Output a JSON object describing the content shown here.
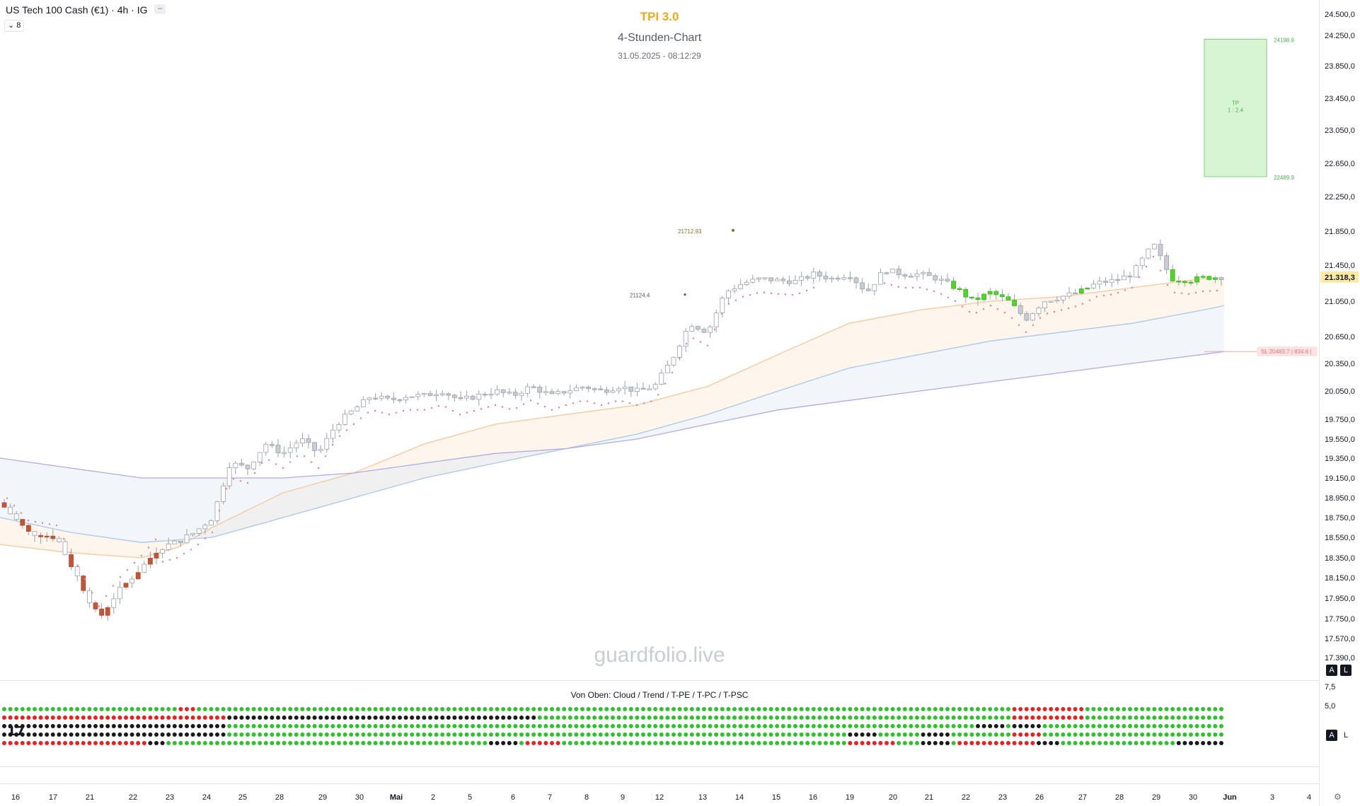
{
  "header": {
    "symbol_title": "US Tech 100 Cash (€1) · 4h · IG",
    "minimize_glyph": "–",
    "collapse_label": "8",
    "indicator_title": "TPI 3.0",
    "chart_subtitle": "4-Stunden-Chart",
    "datetime": "31.05.2025 - 08:12:29"
  },
  "watermark": "guardfolio.live",
  "price_axis": {
    "labels": [
      "24.500,0",
      "24.250,0",
      "23.850,0",
      "23.450,0",
      "23.050,0",
      "22.650,0",
      "22.250,0",
      "21.850,0",
      "21.450,0",
      "21.050,0",
      "20.650,0",
      "20.350,0",
      "20.050,0",
      "19.750,0",
      "19.550,0",
      "19.350,0",
      "19.150,0",
      "18.950,0",
      "18.750,0",
      "18.550,0",
      "18.350,0",
      "18.150,0",
      "17.950,0",
      "17.750,0",
      "17.570,0",
      "17.390,0"
    ],
    "current_price_label": "21.318,3",
    "buttons": [
      "A",
      "L"
    ]
  },
  "indicator_pane": {
    "label": "Von Oben: Cloud / Trend / T-PE / T-PC / T-PSC",
    "axis_labels": [
      "7,5",
      "5,0"
    ],
    "buttons": [
      "A",
      "L"
    ]
  },
  "time_axis": {
    "labels": [
      "16",
      "17",
      "21",
      "22",
      "23",
      "24",
      "25",
      "28",
      "29",
      "30",
      "Mai",
      "2",
      "5",
      "6",
      "7",
      "8",
      "9",
      "12",
      "13",
      "14",
      "15",
      "16",
      "19",
      "20",
      "21",
      "22",
      "23",
      "26",
      "27",
      "28",
      "29",
      "30",
      "Jun",
      "3",
      "4"
    ]
  },
  "annotations": {
    "tp_box_top": "24198.9",
    "tp_box_bottom": "22489.9",
    "tp_box_text": "TP",
    "tp_box_ratio": "1 : 2.4",
    "sl_label": "SL 20483.7 | 834.6 |",
    "high_label_1": "21712.93",
    "high_label_2": "21124.4"
  },
  "tradingview_logo": "17",
  "chart_data": {
    "type": "candlestick",
    "title": "TPI 3.0",
    "subtitle": "4-Stunden-Chart",
    "x_labels": [
      "16",
      "17",
      "21",
      "22",
      "23",
      "24",
      "25",
      "28",
      "29",
      "30",
      "Mai",
      "2",
      "5",
      "6",
      "7",
      "8",
      "9",
      "12",
      "13",
      "14",
      "15",
      "16",
      "19",
      "20",
      "21",
      "22",
      "23",
      "26",
      "27",
      "28",
      "29",
      "30",
      "Jun",
      "3",
      "4"
    ],
    "y_ticks": [
      24500,
      24250,
      23850,
      23450,
      23050,
      22650,
      22250,
      21850,
      21450,
      21050,
      20650,
      20350,
      20050,
      19750,
      19550,
      19350,
      19150,
      18950,
      18750,
      18550,
      18350,
      18150,
      17950,
      17750,
      17570,
      17390
    ],
    "current_price": 21318.3,
    "price_path": [
      [
        0,
        18900
      ],
      [
        40,
        18600
      ],
      [
        80,
        18550
      ],
      [
        110,
        18150
      ],
      [
        140,
        17750
      ],
      [
        165,
        18000
      ],
      [
        200,
        18250
      ],
      [
        225,
        18450
      ],
      [
        250,
        18500
      ],
      [
        275,
        18600
      ],
      [
        300,
        18750
      ],
      [
        325,
        19300
      ],
      [
        350,
        19250
      ],
      [
        375,
        19500
      ],
      [
        400,
        19400
      ],
      [
        425,
        19550
      ],
      [
        450,
        19400
      ],
      [
        475,
        19700
      ],
      [
        500,
        19850
      ],
      [
        525,
        20000
      ],
      [
        550,
        19950
      ],
      [
        575,
        20000
      ],
      [
        600,
        20000
      ],
      [
        625,
        20050
      ],
      [
        650,
        19950
      ],
      [
        675,
        20000
      ],
      [
        700,
        20050
      ],
      [
        725,
        20000
      ],
      [
        750,
        20100
      ],
      [
        780,
        20000
      ],
      [
        800,
        20050
      ],
      [
        825,
        20100
      ],
      [
        850,
        20050
      ],
      [
        875,
        20100
      ],
      [
        900,
        20050
      ],
      [
        925,
        20100
      ],
      [
        950,
        20400
      ],
      [
        975,
        20800
      ],
      [
        1000,
        20700
      ],
      [
        1025,
        21150
      ],
      [
        1050,
        21250
      ],
      [
        1075,
        21300
      ],
      [
        1100,
        21280
      ],
      [
        1125,
        21270
      ],
      [
        1150,
        21350
      ],
      [
        1175,
        21300
      ],
      [
        1200,
        21350
      ],
      [
        1225,
        21150
      ],
      [
        1250,
        21400
      ],
      [
        1275,
        21350
      ],
      [
        1300,
        21350
      ],
      [
        1325,
        21300
      ],
      [
        1350,
        21200
      ],
      [
        1375,
        21050
      ],
      [
        1400,
        21150
      ],
      [
        1425,
        21050
      ],
      [
        1450,
        20850
      ],
      [
        1475,
        21050
      ],
      [
        1500,
        21100
      ],
      [
        1525,
        21150
      ],
      [
        1550,
        21250
      ],
      [
        1575,
        21280
      ],
      [
        1600,
        21350
      ],
      [
        1630,
        21700
      ],
      [
        1655,
        21300
      ],
      [
        1680,
        21280
      ],
      [
        1700,
        21310
      ],
      [
        1730,
        21320
      ]
    ],
    "cloud_fast": [
      [
        0,
        18480
      ],
      [
        100,
        18400
      ],
      [
        200,
        18350
      ],
      [
        250,
        18450
      ],
      [
        300,
        18650
      ],
      [
        400,
        19000
      ],
      [
        500,
        19200
      ],
      [
        600,
        19500
      ],
      [
        700,
        19700
      ],
      [
        800,
        19800
      ],
      [
        900,
        19900
      ],
      [
        1000,
        20100
      ],
      [
        1100,
        20450
      ],
      [
        1200,
        20800
      ],
      [
        1300,
        20950
      ],
      [
        1400,
        21050
      ],
      [
        1500,
        21100
      ],
      [
        1600,
        21200
      ],
      [
        1700,
        21300
      ],
      [
        1730,
        21310
      ]
    ],
    "cloud_mid": [
      [
        0,
        18750
      ],
      [
        100,
        18600
      ],
      [
        200,
        18500
      ],
      [
        300,
        18550
      ],
      [
        400,
        18750
      ],
      [
        500,
        18950
      ],
      [
        600,
        19150
      ],
      [
        700,
        19300
      ],
      [
        800,
        19450
      ],
      [
        900,
        19600
      ],
      [
        1000,
        19800
      ],
      [
        1100,
        20050
      ],
      [
        1200,
        20300
      ],
      [
        1300,
        20450
      ],
      [
        1400,
        20600
      ],
      [
        1500,
        20700
      ],
      [
        1600,
        20800
      ],
      [
        1700,
        20950
      ],
      [
        1730,
        21000
      ]
    ],
    "cloud_slow": [
      [
        0,
        19350
      ],
      [
        100,
        19250
      ],
      [
        200,
        19150
      ],
      [
        300,
        19150
      ],
      [
        400,
        19150
      ],
      [
        500,
        19200
      ],
      [
        600,
        19300
      ],
      [
        700,
        19400
      ],
      [
        800,
        19450
      ],
      [
        900,
        19550
      ],
      [
        1000,
        19700
      ],
      [
        1100,
        19850
      ],
      [
        1200,
        19950
      ],
      [
        1300,
        20050
      ],
      [
        1400,
        20150
      ],
      [
        1500,
        20250
      ],
      [
        1600,
        20350
      ],
      [
        1700,
        20450
      ],
      [
        1730,
        20483
      ]
    ],
    "tp_level": 24198.9,
    "entry_level": 22489.9,
    "sl_level": 20483.7,
    "signal_rows": 5
  }
}
